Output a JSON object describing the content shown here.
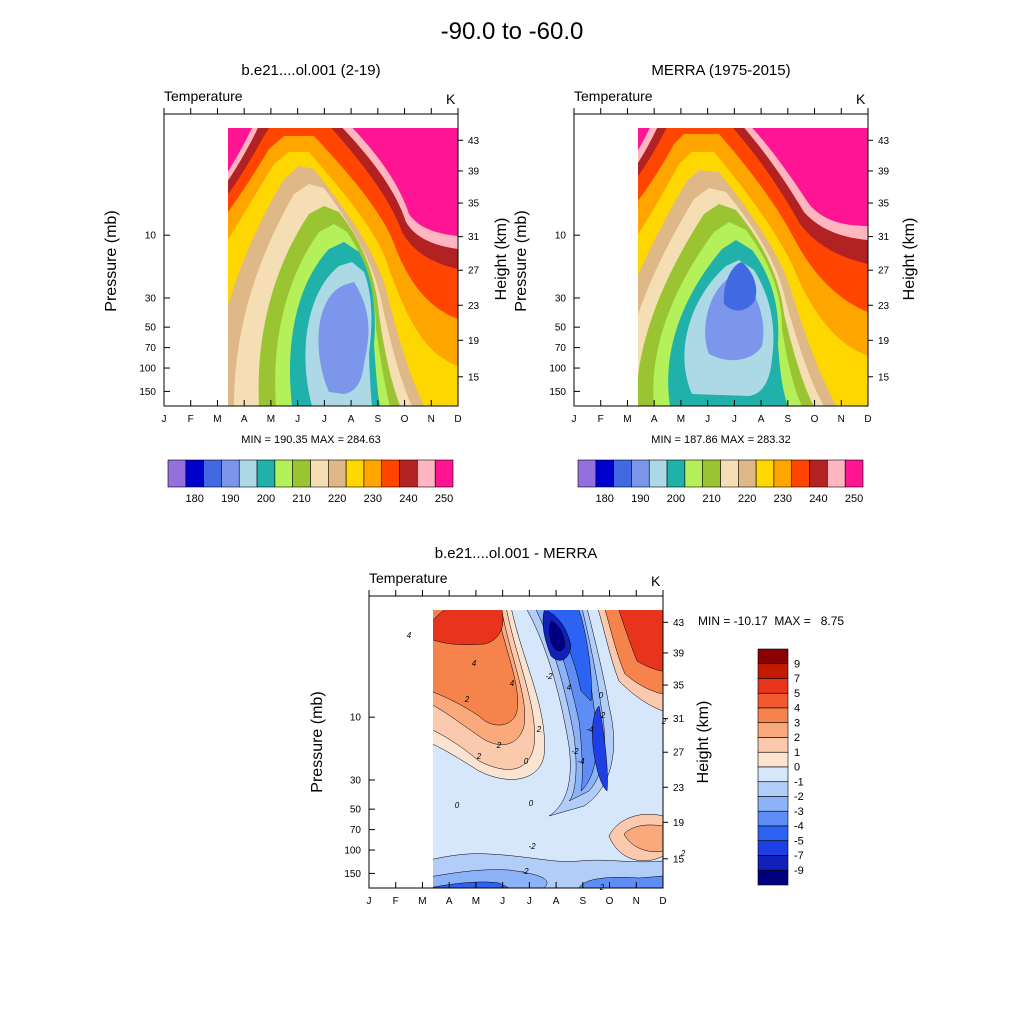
{
  "figure": {
    "title": "-90.0 to -60.0"
  },
  "chart_data": [
    {
      "type": "contour",
      "title": "b.e21....ol.001 (2-19)",
      "variable": "Temperature",
      "units": "K",
      "xlabel": "",
      "ylabel": "Pressure (mb)",
      "y2label": "Height (km)",
      "x_ticks": [
        "J",
        "F",
        "M",
        "A",
        "M",
        "J",
        "J",
        "A",
        "S",
        "O",
        "N",
        "D"
      ],
      "y_ticks": [
        "10",
        "30",
        "50",
        "70",
        "100",
        "150"
      ],
      "y2_ticks": [
        "43",
        "39",
        "35",
        "31",
        "27",
        "23",
        "19",
        "15"
      ],
      "stats": "MIN = 190.35  MAX = 284.63",
      "min": 190.35,
      "max": 284.63,
      "colorbar_ticks": [
        "180",
        "190",
        "200",
        "210",
        "220",
        "230",
        "240",
        "250"
      ],
      "colors": [
        "#9370db",
        "#0000cd",
        "#4169e1",
        "#7b96ea",
        "#add8e6",
        "#20b2aa",
        "#b4f05a",
        "#9ac432",
        "#f5deb3",
        "#deb887",
        "#ffd700",
        "#ffa500",
        "#ff4500",
        "#b22222",
        "#ffb6c1",
        "#ff1493"
      ]
    },
    {
      "type": "contour",
      "title": "MERRA (1975-2015)",
      "variable": "Temperature",
      "units": "K",
      "xlabel": "",
      "ylabel": "Pressure (mb)",
      "y2label": "Height (km)",
      "x_ticks": [
        "J",
        "F",
        "M",
        "A",
        "M",
        "J",
        "J",
        "A",
        "S",
        "O",
        "N",
        "D"
      ],
      "y_ticks": [
        "10",
        "30",
        "50",
        "70",
        "100",
        "150"
      ],
      "y2_ticks": [
        "43",
        "39",
        "35",
        "31",
        "27",
        "23",
        "19",
        "15"
      ],
      "stats": "MIN = 187.86  MAX = 283.32",
      "min": 187.86,
      "max": 283.32,
      "colorbar_ticks": [
        "180",
        "190",
        "200",
        "210",
        "220",
        "230",
        "240",
        "250"
      ],
      "colors": [
        "#9370db",
        "#0000cd",
        "#4169e1",
        "#7b96ea",
        "#add8e6",
        "#20b2aa",
        "#b4f05a",
        "#9ac432",
        "#f5deb3",
        "#deb887",
        "#ffd700",
        "#ffa500",
        "#ff4500",
        "#b22222",
        "#ffb6c1",
        "#ff1493"
      ]
    },
    {
      "type": "contour",
      "title": "b.e21....ol.001 - MERRA",
      "variable": "Temperature",
      "units": "K",
      "xlabel": "",
      "ylabel": "Pressure (mb)",
      "y2label": "Height (km)",
      "x_ticks": [
        "J",
        "F",
        "M",
        "A",
        "M",
        "J",
        "J",
        "A",
        "S",
        "O",
        "N",
        "D"
      ],
      "y_ticks": [
        "10",
        "30",
        "50",
        "70",
        "100",
        "150"
      ],
      "y2_ticks": [
        "43",
        "39",
        "35",
        "31",
        "27",
        "23",
        "19",
        "15"
      ],
      "stats": "MIN = -10.17  MAX =   8.75",
      "min": -10.17,
      "max": 8.75,
      "contour_labels": [
        "4",
        "4",
        "4",
        "4",
        "2",
        "2",
        "2",
        "2",
        "0",
        "0",
        "0",
        "-2",
        "-4",
        "-2",
        "-4",
        "0",
        "2",
        "2",
        "-2",
        "-2",
        "2",
        "2"
      ],
      "colorbar_ticks": [
        "9",
        "7",
        "5",
        "4",
        "3",
        "2",
        "1",
        "0",
        "-1",
        "-2",
        "-3",
        "-4",
        "-5",
        "-7",
        "-9"
      ],
      "colors": [
        "#8b0000",
        "#c41a00",
        "#e8341c",
        "#f4582e",
        "#f7834c",
        "#f9a97c",
        "#fbcaae",
        "#fbe3d2",
        "#d6e6fb",
        "#b2cdf8",
        "#8cb2f7",
        "#5d8df5",
        "#2d63f2",
        "#1e3ee6",
        "#1020b8",
        "#000080"
      ]
    }
  ]
}
